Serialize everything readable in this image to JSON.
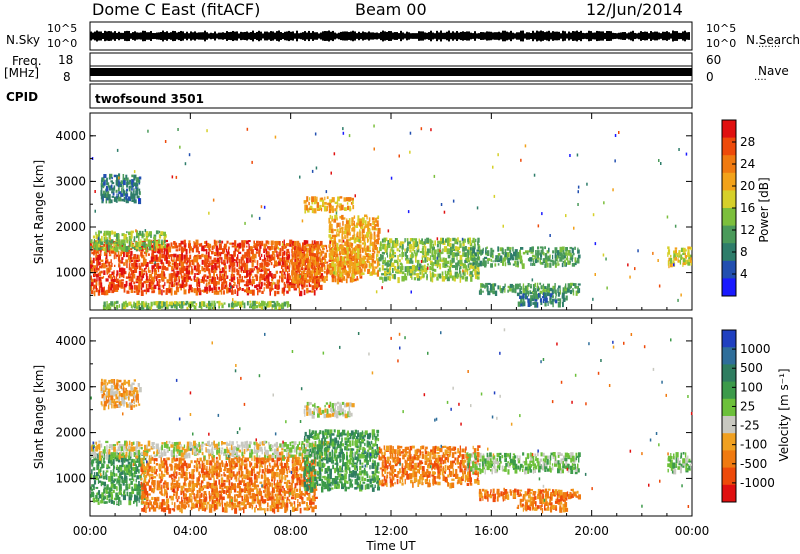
{
  "header": {
    "station": "Dome C East (fitACF)",
    "beam": "Beam 00",
    "date": "12/Jun/2014"
  },
  "panels": {
    "nsky": {
      "left_label": "N.Sky",
      "right_label": "N.Search",
      "right_dots": "·······",
      "ytop_left": "10^5",
      "ybot_left": "10^0",
      "ytop_right": "10^5",
      "ybot_right": "10^0"
    },
    "freq": {
      "left_label": "Freq.",
      "left_unit": "[MHz]",
      "right_label": "Nave",
      "right_dots": "····",
      "ytop_left": "18",
      "ybot_left": "8",
      "ytop_right": "60",
      "ybot_right": "0"
    },
    "cpid": {
      "label": "CPID",
      "value": "twofsound 3501"
    }
  },
  "power_panel": {
    "ylabel": "Slant Range [km]",
    "yticks": [
      1000,
      2000,
      3000,
      4000
    ],
    "colorbar_label": "Power [dB]",
    "colorbar_ticks": [
      "4",
      "8",
      "12",
      "16",
      "20",
      "24",
      "28"
    ],
    "colors": [
      "#1a1aff",
      "#224fb0",
      "#2e7d6a",
      "#4a9a5a",
      "#7cbf3c",
      "#d6d02a",
      "#f2a21a",
      "#f07a10",
      "#ee4a0a",
      "#e01010"
    ]
  },
  "velocity_panel": {
    "ylabel": "Slant Range [km]",
    "yticks": [
      1000,
      2000,
      3000,
      4000
    ],
    "colorbar_label": "Velocity [m s⁻¹]",
    "colorbar_ticks": [
      "1000",
      "500",
      "100",
      "25",
      "-25",
      "-100",
      "-500",
      "-1000"
    ],
    "colors": [
      "#2040c0",
      "#2f6e9a",
      "#2f7d60",
      "#3c9a4a",
      "#6cc03a",
      "#c8c8c0",
      "#f0a020",
      "#f07a10",
      "#ee4a0a",
      "#e01010"
    ]
  },
  "x_axis": {
    "ticks": [
      "00:00",
      "04:00",
      "08:00",
      "12:00",
      "16:00",
      "20:00",
      "00:00"
    ],
    "label": "Time UT"
  },
  "chart_data": [
    {
      "type": "heatmap",
      "title": "Power",
      "xlabel": "Time UT",
      "ylabel": "Slant Range [km]",
      "xlim": [
        0,
        24
      ],
      "ylim": [
        180,
        4500
      ],
      "colorbar": "Power [dB]",
      "clim": [
        0,
        30
      ],
      "regions": [
        {
          "t": [
            0,
            9.2
          ],
          "r": [
            600,
            1750
          ],
          "value": 28
        },
        {
          "t": [
            0,
            3.0
          ],
          "r": [
            1550,
            1950
          ],
          "value": 14
        },
        {
          "t": [
            8.0,
            10.8
          ],
          "r": [
            850,
            1650
          ],
          "value": 22
        },
        {
          "t": [
            9.5,
            11.5
          ],
          "r": [
            1000,
            2300
          ],
          "value": 20
        },
        {
          "t": [
            11.5,
            15.5
          ],
          "r": [
            900,
            1800
          ],
          "value": 12
        },
        {
          "t": [
            15.0,
            19.5
          ],
          "r": [
            1200,
            1600
          ],
          "value": 10
        },
        {
          "t": [
            15.5,
            19.5
          ],
          "r": [
            600,
            800
          ],
          "value": 10
        },
        {
          "t": [
            17.0,
            19.0
          ],
          "r": [
            350,
            600
          ],
          "value": 8
        },
        {
          "t": [
            23.0,
            24.0
          ],
          "r": [
            1200,
            1600
          ],
          "value": 16
        },
        {
          "t": [
            0.4,
            2.0
          ],
          "r": [
            2600,
            3200
          ],
          "value": 8
        },
        {
          "t": [
            8.5,
            10.5
          ],
          "r": [
            2400,
            2700
          ],
          "value": 20
        },
        {
          "t": [
            0.5,
            8.0
          ],
          "r": [
            250,
            400
          ],
          "value": 12
        }
      ]
    },
    {
      "type": "heatmap",
      "title": "Velocity",
      "xlabel": "Time UT",
      "ylabel": "Slant Range [km]",
      "xlim": [
        0,
        24
      ],
      "ylim": [
        180,
        4500
      ],
      "colorbar": "Velocity [m s-1]",
      "clim": [
        -1000,
        1000
      ],
      "regions": [
        {
          "t": [
            0,
            2.2
          ],
          "r": [
            500,
            1600
          ],
          "value": 100
        },
        {
          "t": [
            0,
            9.5
          ],
          "r": [
            1500,
            1850
          ],
          "value": 0
        },
        {
          "t": [
            2.0,
            9.0
          ],
          "r": [
            350,
            1500
          ],
          "value": -150
        },
        {
          "t": [
            8.5,
            11.5
          ],
          "r": [
            800,
            2100
          ],
          "value": 120
        },
        {
          "t": [
            11.5,
            15.5
          ],
          "r": [
            900,
            1750
          ],
          "value": -120
        },
        {
          "t": [
            15.0,
            19.5
          ],
          "r": [
            1200,
            1600
          ],
          "value": 80
        },
        {
          "t": [
            15.5,
            19.5
          ],
          "r": [
            600,
            800
          ],
          "value": -200
        },
        {
          "t": [
            17.0,
            19.0
          ],
          "r": [
            350,
            600
          ],
          "value": -150
        },
        {
          "t": [
            23.0,
            24.0
          ],
          "r": [
            1200,
            1600
          ],
          "value": 60
        },
        {
          "t": [
            8.5,
            10.5
          ],
          "r": [
            2400,
            2700
          ],
          "value": 0
        },
        {
          "t": [
            0.4,
            2.0
          ],
          "r": [
            2600,
            3200
          ],
          "value": -60
        }
      ]
    }
  ]
}
